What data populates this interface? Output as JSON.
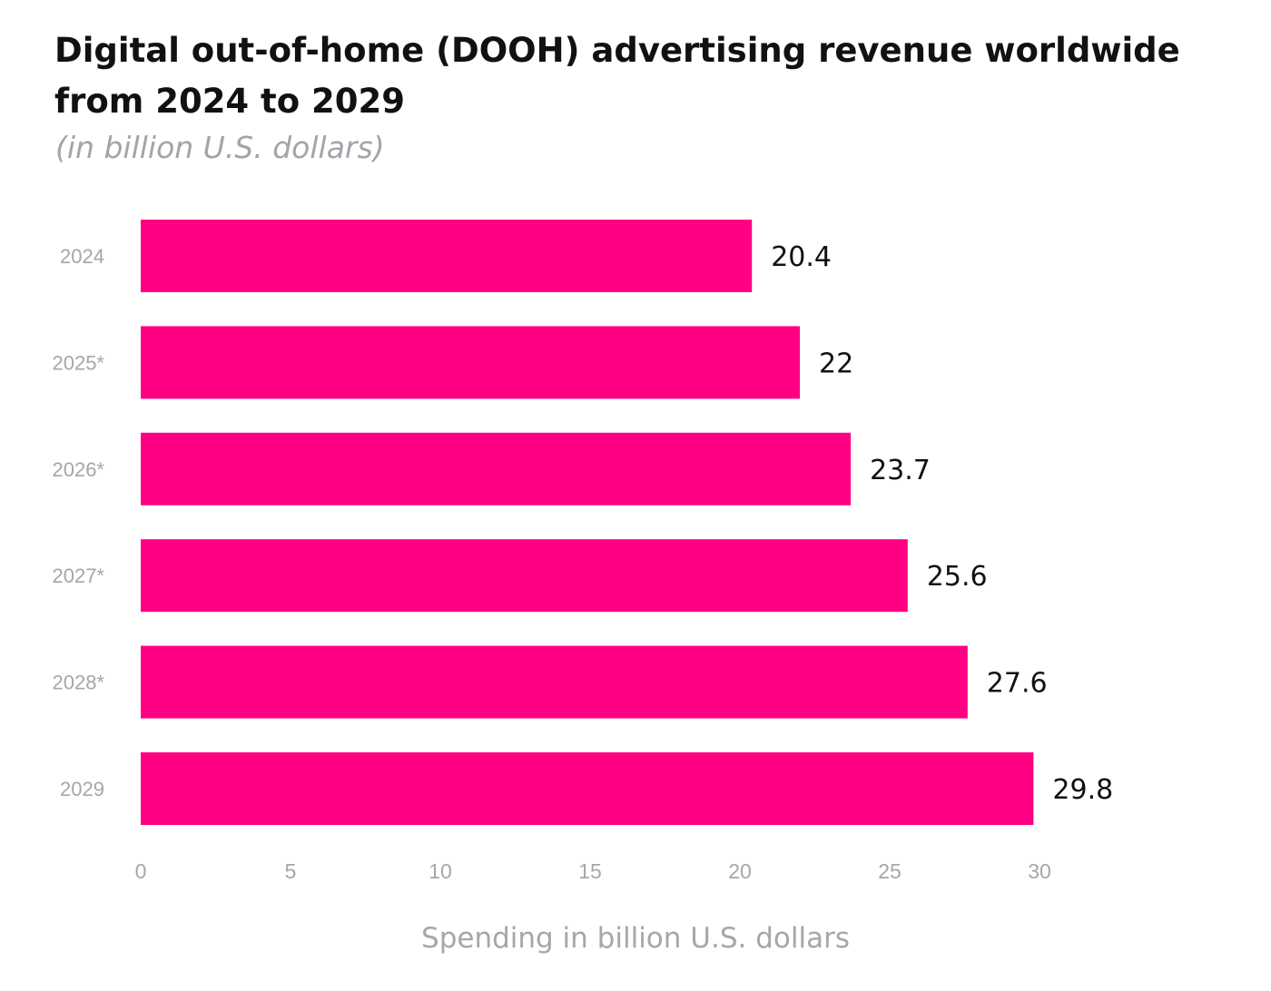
{
  "chart_data": {
    "type": "bar",
    "orientation": "horizontal",
    "title": "Digital out-of-home (DOOH) advertising revenue worldwide from 2024 to 2029",
    "subtitle": "(in billion U.S. dollars)",
    "xlabel": "Spending in billion U.S. dollars",
    "ylabel": "",
    "categories": [
      "2024",
      "2025*",
      "2026*",
      "2027*",
      "2028*",
      "2029"
    ],
    "values": [
      20.4,
      22,
      23.7,
      25.6,
      27.6,
      29.8
    ],
    "value_labels": [
      "20.4",
      "22",
      "23.7",
      "25.6",
      "27.6",
      "29.8"
    ],
    "xlim": [
      0,
      30
    ],
    "xticks": [
      0,
      5,
      10,
      15,
      20,
      25,
      30
    ],
    "grid": false,
    "legend": "none",
    "bar_color": "#ff0084"
  }
}
